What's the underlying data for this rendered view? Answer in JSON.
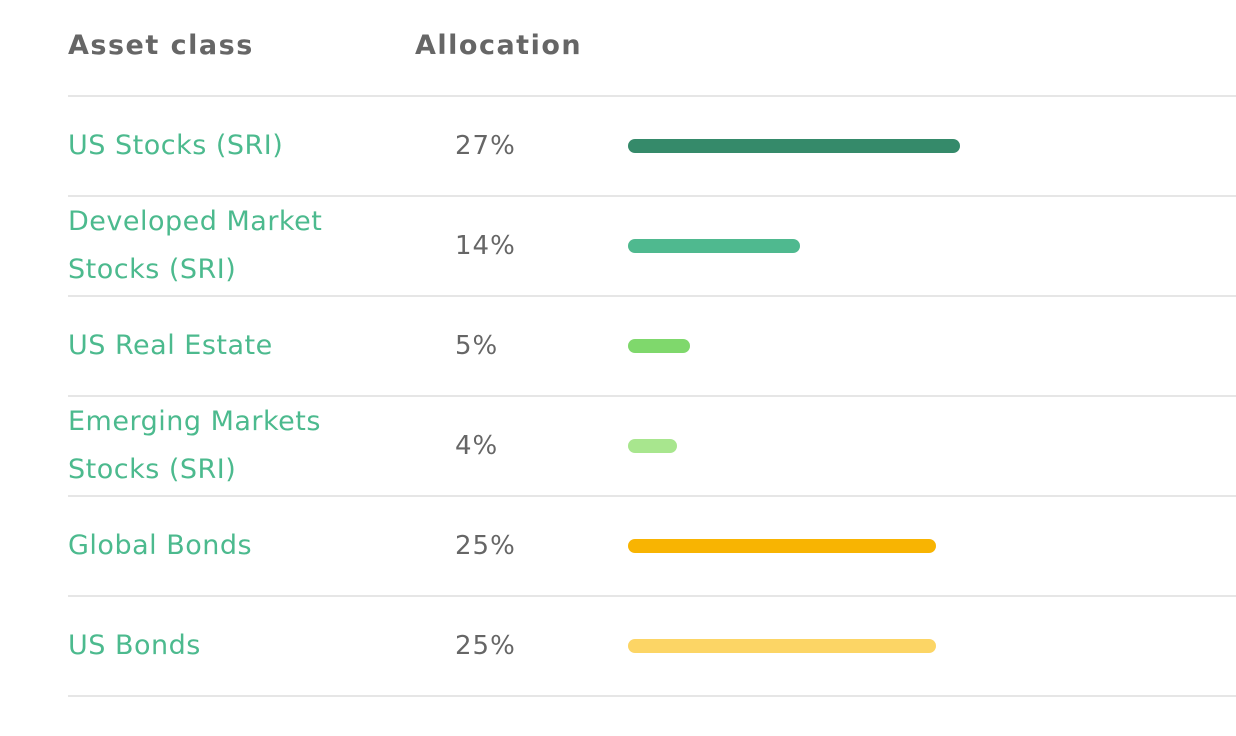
{
  "header": {
    "asset_class": "Asset class",
    "allocation": "Allocation"
  },
  "rows": [
    {
      "name": "US Stocks (SRI)",
      "allocation": "27%",
      "value": 27,
      "color": "#358a6a"
    },
    {
      "name": "Developed Market Stocks (SRI)",
      "allocation": "14%",
      "value": 14,
      "color": "#4fb98f"
    },
    {
      "name": "US Real Estate",
      "allocation": "5%",
      "value": 5,
      "color": "#7fd86c"
    },
    {
      "name": "Emerging Markets Stocks (SRI)",
      "allocation": "4%",
      "value": 4,
      "color": "#a8e68e"
    },
    {
      "name": "Global Bonds",
      "allocation": "25%",
      "value": 25,
      "color": "#f8b402"
    },
    {
      "name": "US Bonds",
      "allocation": "25%",
      "value": 25,
      "color": "#fcd565"
    }
  ]
}
